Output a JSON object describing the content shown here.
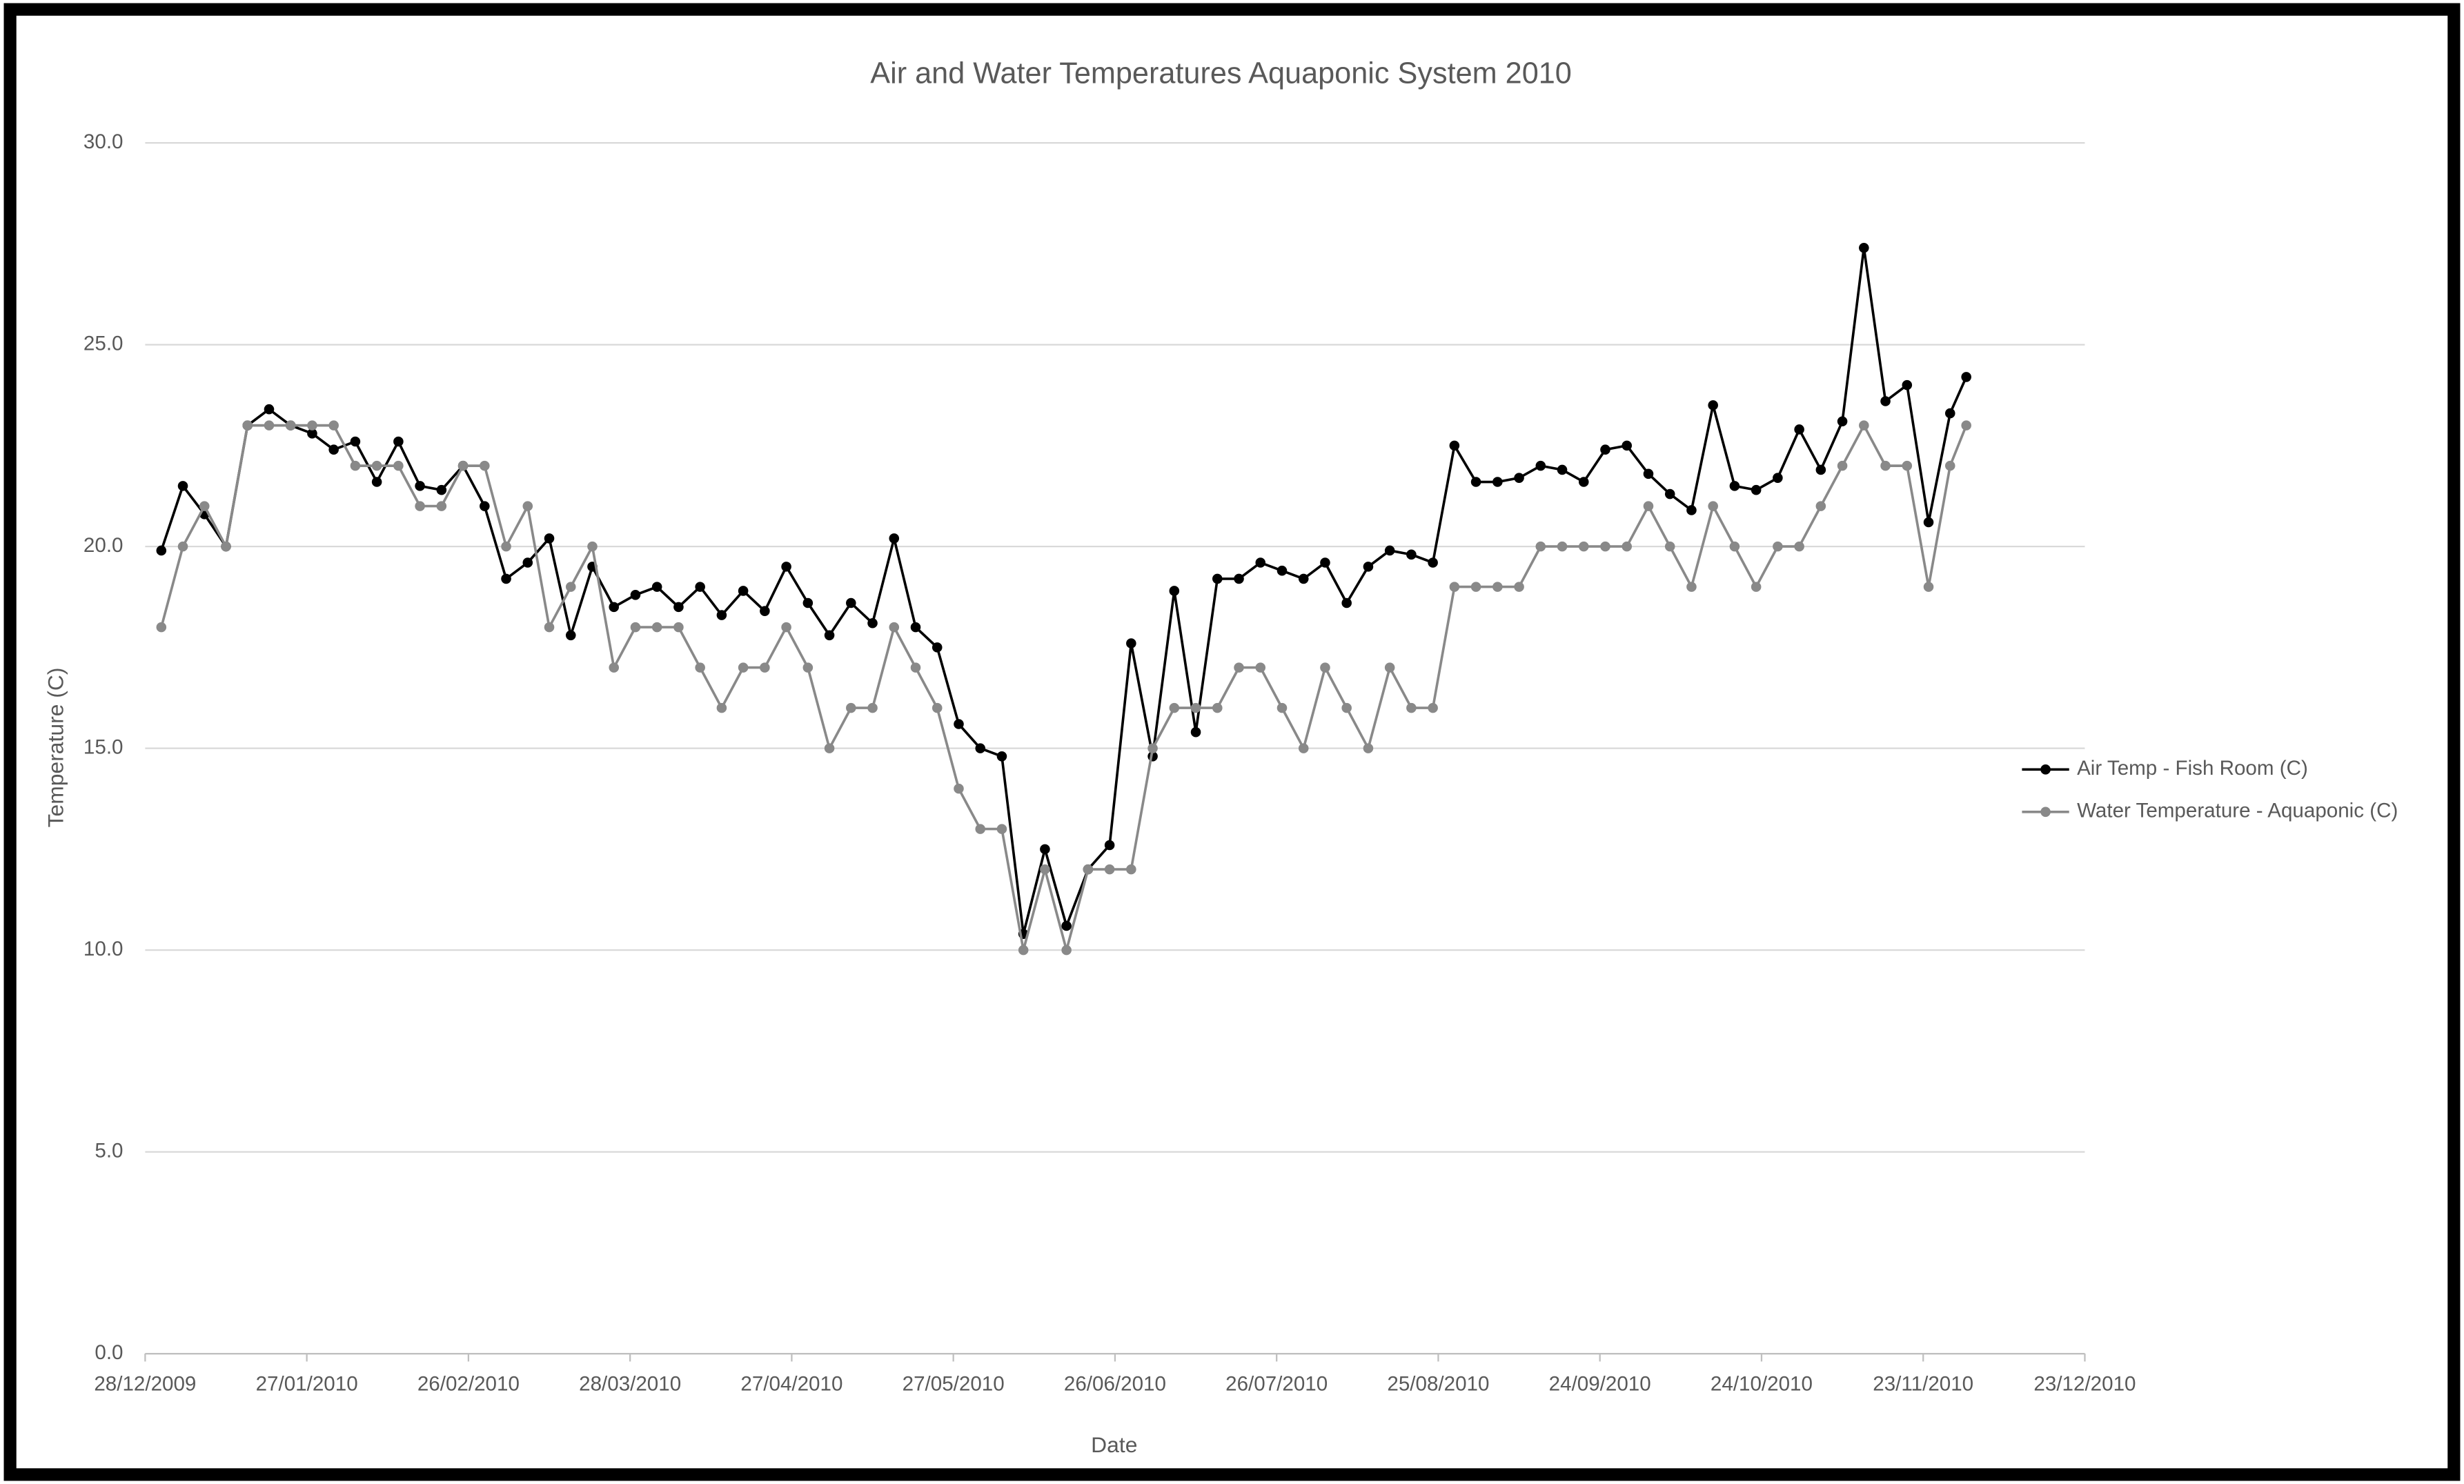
{
  "chart_data": {
    "type": "line",
    "title": "Air and Water Temperatures  Aquaponic System 2010",
    "x_label": "Date",
    "y_label": "Temperature (C)",
    "x": [
      "2009-12-31",
      "2010-01-04",
      "2010-01-08",
      "2010-01-12",
      "2010-01-16",
      "2010-01-20",
      "2010-01-24",
      "2010-01-28",
      "2010-02-01",
      "2010-02-05",
      "2010-02-09",
      "2010-02-13",
      "2010-02-17",
      "2010-02-21",
      "2010-02-25",
      "2010-03-01",
      "2010-03-05",
      "2010-03-09",
      "2010-03-13",
      "2010-03-17",
      "2010-03-21",
      "2010-03-25",
      "2010-03-29",
      "2010-04-02",
      "2010-04-06",
      "2010-04-10",
      "2010-04-14",
      "2010-04-18",
      "2010-04-22",
      "2010-04-26",
      "2010-04-30",
      "2010-05-04",
      "2010-05-08",
      "2010-05-12",
      "2010-05-16",
      "2010-05-20",
      "2010-05-24",
      "2010-05-28",
      "2010-06-01",
      "2010-06-05",
      "2010-06-09",
      "2010-06-13",
      "2010-06-17",
      "2010-06-21",
      "2010-06-25",
      "2010-06-29",
      "2010-07-03",
      "2010-07-07",
      "2010-07-11",
      "2010-07-15",
      "2010-07-19",
      "2010-07-23",
      "2010-07-27",
      "2010-07-31",
      "2010-08-04",
      "2010-08-08",
      "2010-08-12",
      "2010-08-16",
      "2010-08-20",
      "2010-08-24",
      "2010-08-28",
      "2010-09-01",
      "2010-09-05",
      "2010-09-09",
      "2010-09-13",
      "2010-09-17",
      "2010-09-21",
      "2010-09-25",
      "2010-09-29",
      "2010-10-03",
      "2010-10-07",
      "2010-10-11",
      "2010-10-15",
      "2010-10-19",
      "2010-10-23",
      "2010-10-27",
      "2010-10-31",
      "2010-11-04",
      "2010-11-08",
      "2010-11-12",
      "2010-11-16",
      "2010-11-20",
      "2010-11-24",
      "2010-11-28",
      "2010-12-01"
    ],
    "series": [
      {
        "name": "Air Temp - Fish Room (C)",
        "color": "#000000",
        "values": [
          19.9,
          21.5,
          20.8,
          20.0,
          23.0,
          23.4,
          23.0,
          22.8,
          22.4,
          22.6,
          21.6,
          22.6,
          21.5,
          21.4,
          22.0,
          21.0,
          19.2,
          19.6,
          20.2,
          17.8,
          19.5,
          18.5,
          18.8,
          19.0,
          18.5,
          19.0,
          18.3,
          18.9,
          18.4,
          19.5,
          18.6,
          17.8,
          18.6,
          18.1,
          20.2,
          18.0,
          17.5,
          15.6,
          15.0,
          14.8,
          10.4,
          12.5,
          10.6,
          12.0,
          12.6,
          17.6,
          14.8,
          18.9,
          15.4,
          19.2,
          19.2,
          19.6,
          19.4,
          19.2,
          19.6,
          18.6,
          19.5,
          19.9,
          19.8,
          19.6,
          22.5,
          21.6,
          21.6,
          21.7,
          22.0,
          21.9,
          21.6,
          22.4,
          22.5,
          21.8,
          21.3,
          20.9,
          23.5,
          21.5,
          21.4,
          21.7,
          22.9,
          21.9,
          23.1,
          27.4,
          23.6,
          24.0,
          20.6,
          23.3,
          24.2
        ]
      },
      {
        "name": "Water Temperature - Aquaponic (C)",
        "color": "#898989",
        "values": [
          18,
          20,
          21,
          20,
          23,
          23,
          23,
          23,
          23,
          22,
          22,
          22,
          21,
          21,
          22,
          22,
          20,
          21,
          18,
          19,
          20,
          17,
          18,
          18,
          18,
          17,
          16,
          17,
          17,
          18,
          17,
          15,
          16,
          16,
          18,
          17,
          16,
          14,
          13,
          13,
          10,
          12,
          10,
          12,
          12,
          12,
          15,
          16,
          16,
          16,
          17,
          17,
          16,
          15,
          17,
          16,
          15,
          17,
          16,
          16,
          19,
          19,
          19,
          19,
          20,
          20,
          20,
          20,
          20,
          21,
          20,
          19,
          21,
          20,
          19,
          20,
          20,
          21,
          22,
          23,
          22,
          22,
          19,
          22,
          23
        ]
      }
    ],
    "xlim": [
      "2009-12-28",
      "2010-12-23"
    ],
    "xticks": [
      {
        "value": "2009-12-28",
        "label": "28/12/2009"
      },
      {
        "value": "2010-01-27",
        "label": "27/01/2010"
      },
      {
        "value": "2010-02-26",
        "label": "26/02/2010"
      },
      {
        "value": "2010-03-28",
        "label": "28/03/2010"
      },
      {
        "value": "2010-04-27",
        "label": "27/04/2010"
      },
      {
        "value": "2010-05-27",
        "label": "27/05/2010"
      },
      {
        "value": "2010-06-26",
        "label": "26/06/2010"
      },
      {
        "value": "2010-07-26",
        "label": "26/07/2010"
      },
      {
        "value": "2010-08-25",
        "label": "25/08/2010"
      },
      {
        "value": "2010-09-24",
        "label": "24/09/2010"
      },
      {
        "value": "2010-10-24",
        "label": "24/10/2010"
      },
      {
        "value": "2010-11-23",
        "label": "23/11/2010"
      },
      {
        "value": "2010-12-23",
        "label": "23/12/2010"
      }
    ],
    "ylim": [
      0,
      30
    ],
    "yticks": [
      {
        "value": 0,
        "label": "0.0"
      },
      {
        "value": 5,
        "label": "5.0"
      },
      {
        "value": 10,
        "label": "10.0"
      },
      {
        "value": 15,
        "label": "15.0"
      },
      {
        "value": 20,
        "label": "20.0"
      },
      {
        "value": 25,
        "label": "25.0"
      },
      {
        "value": 30,
        "label": "30.0"
      }
    ],
    "grid": true,
    "legend": "right"
  }
}
